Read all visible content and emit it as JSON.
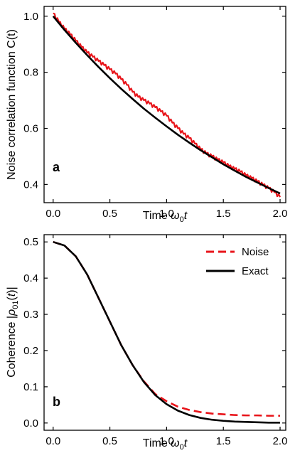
{
  "chart_data": [
    {
      "type": "line",
      "panel_label": "a",
      "xlabel": "Time ω₀t",
      "ylabel": "Noise correlation function C(t)",
      "xlim": [
        -0.08,
        2.05
      ],
      "ylim": [
        0.335,
        1.035
      ],
      "xticks": [
        0.0,
        0.5,
        1.0,
        1.5,
        2.0
      ],
      "xtick_labels": [
        "0.0",
        "0.5",
        "1.0",
        "1.5",
        "2.0"
      ],
      "yticks": [
        0.4,
        0.6,
        0.8,
        1.0
      ],
      "ytick_labels": [
        "0.4",
        "0.6",
        "0.8",
        "1.0"
      ],
      "grid": false,
      "legend": null,
      "series": [
        {
          "color": "#e8141a",
          "dash": "solid",
          "x": [
            0.0,
            0.05,
            0.1,
            0.15,
            0.2,
            0.25,
            0.3,
            0.35,
            0.4,
            0.45,
            0.5,
            0.55,
            0.6,
            0.65,
            0.7,
            0.75,
            0.8,
            0.85,
            0.9,
            0.95,
            1.0,
            1.05,
            1.1,
            1.15,
            1.2,
            1.25,
            1.3,
            1.35,
            1.4,
            1.45,
            1.5,
            1.55,
            1.6,
            1.65,
            1.7,
            1.75,
            1.8,
            1.85,
            1.9,
            1.95,
            2.0
          ],
          "y": [
            1.01,
            0.98,
            0.955,
            0.935,
            0.912,
            0.89,
            0.87,
            0.855,
            0.84,
            0.825,
            0.81,
            0.795,
            0.775,
            0.755,
            0.73,
            0.712,
            0.7,
            0.688,
            0.675,
            0.66,
            0.645,
            0.62,
            0.6,
            0.58,
            0.565,
            0.545,
            0.525,
            0.51,
            0.5,
            0.488,
            0.478,
            0.465,
            0.455,
            0.445,
            0.432,
            0.422,
            0.41,
            0.398,
            0.386,
            0.372,
            0.355
          ]
        },
        {
          "color": "#000000",
          "dash": "solid",
          "x": [
            0.0,
            0.1,
            0.2,
            0.3,
            0.4,
            0.5,
            0.6,
            0.7,
            0.8,
            0.9,
            1.0,
            1.1,
            1.2,
            1.3,
            1.4,
            1.5,
            1.6,
            1.7,
            1.8,
            1.9,
            2.0
          ],
          "y": [
            1.0,
            0.951,
            0.905,
            0.861,
            0.819,
            0.779,
            0.741,
            0.705,
            0.67,
            0.638,
            0.607,
            0.577,
            0.549,
            0.522,
            0.497,
            0.472,
            0.449,
            0.427,
            0.407,
            0.387,
            0.368
          ]
        }
      ]
    },
    {
      "type": "line",
      "panel_label": "b",
      "xlabel": "Time ω₀t",
      "ylabel": "Coherence |ρ₀₁(t)|",
      "xlim": [
        -0.08,
        2.05
      ],
      "ylim": [
        -0.02,
        0.52
      ],
      "xticks": [
        0.0,
        0.5,
        1.0,
        1.5,
        2.0
      ],
      "xtick_labels": [
        "0.0",
        "0.5",
        "1.0",
        "1.5",
        "2.0"
      ],
      "yticks": [
        0.0,
        0.1,
        0.2,
        0.3,
        0.4,
        0.5
      ],
      "ytick_labels": [
        "0.0",
        "0.1",
        "0.2",
        "0.3",
        "0.4",
        "0.5"
      ],
      "grid": false,
      "legend": "top-right",
      "series": [
        {
          "name": "Noise",
          "color": "#e8141a",
          "dash": "dashed",
          "x": [
            0.0,
            0.1,
            0.2,
            0.3,
            0.4,
            0.5,
            0.6,
            0.7,
            0.8,
            0.9,
            1.0,
            1.1,
            1.2,
            1.3,
            1.4,
            1.5,
            1.6,
            1.7,
            1.8,
            1.9,
            2.0
          ],
          "y": [
            0.5,
            0.49,
            0.46,
            0.41,
            0.345,
            0.28,
            0.215,
            0.16,
            0.115,
            0.08,
            0.06,
            0.045,
            0.036,
            0.03,
            0.026,
            0.024,
            0.022,
            0.021,
            0.021,
            0.02,
            0.02
          ]
        },
        {
          "name": "Exact",
          "color": "#000000",
          "dash": "solid",
          "x": [
            0.0,
            0.1,
            0.2,
            0.3,
            0.4,
            0.5,
            0.6,
            0.7,
            0.8,
            0.9,
            1.0,
            1.1,
            1.2,
            1.3,
            1.4,
            1.5,
            1.6,
            1.7,
            1.8,
            1.9,
            2.0
          ],
          "y": [
            0.5,
            0.49,
            0.46,
            0.41,
            0.345,
            0.28,
            0.215,
            0.16,
            0.113,
            0.077,
            0.052,
            0.034,
            0.022,
            0.014,
            0.009,
            0.006,
            0.004,
            0.003,
            0.002,
            0.001,
            0.001
          ]
        }
      ]
    }
  ]
}
